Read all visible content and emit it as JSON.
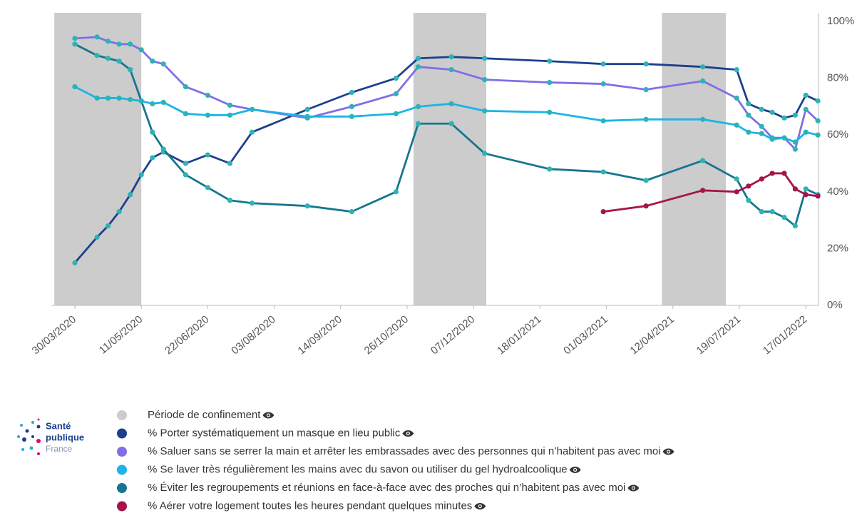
{
  "chart_data": {
    "type": "line",
    "x": [
      "30/03/2020",
      "13/04/2020",
      "20/04/2020",
      "27/04/2020",
      "04/05/2020",
      "11/05/2020",
      "18/05/2020",
      "25/05/2020",
      "08/06/2020",
      "22/06/2020",
      "06/07/2020",
      "20/07/2020",
      "24/08/2020",
      "21/09/2020",
      "19/10/2020",
      "02/11/2020",
      "23/11/2020",
      "14/12/2020",
      "24/01/2021",
      "27/02/2021",
      "26/03/2021",
      "26/05/2021",
      "15/07/2021",
      "13/08/2021",
      "18/09/2021",
      "17/10/2021",
      "19/11/2021",
      "19/12/2021",
      "17/01/2022",
      "19/02/2022"
    ],
    "xlim": [
      "15/03/2020",
      "19/02/2022"
    ],
    "xticks": [
      "30/03/2020",
      "11/05/2020",
      "22/06/2020",
      "03/08/2020",
      "14/09/2020",
      "26/10/2020",
      "07/12/2020",
      "18/01/2021",
      "01/03/2021",
      "12/04/2021",
      "19/07/2021",
      "17/01/2022"
    ],
    "ylim": [
      0,
      100
    ],
    "yticks": [
      {
        "value": 0,
        "label": "0%"
      },
      {
        "value": 20,
        "label": "20%"
      },
      {
        "value": 40,
        "label": "40%"
      },
      {
        "value": 60,
        "label": "60%"
      },
      {
        "value": 80,
        "label": "80%"
      },
      {
        "value": 100,
        "label": "100%"
      }
    ],
    "grid": false,
    "bands": {
      "name": "Période de confinement",
      "color": "#cccccc",
      "periods": [
        [
          "17/03/2020",
          "11/05/2020"
        ],
        [
          "30/10/2020",
          "15/12/2020"
        ],
        [
          "05/04/2021",
          "29/06/2021"
        ]
      ]
    },
    "series": [
      {
        "name": "% Porter systématiquement un masque en lieu public",
        "color": "#1d3f8e",
        "marker_color": "#2bb3b5",
        "values": [
          15,
          24,
          28,
          33,
          39,
          46,
          52,
          54,
          50,
          53,
          50,
          61,
          69,
          75,
          80,
          87,
          87.5,
          87,
          86,
          85,
          85,
          84,
          83,
          71,
          69,
          68,
          66,
          67,
          74,
          72
        ]
      },
      {
        "name": "% Saluer sans se serrer la main et arrêter les embrassades avec des personnes qui n’habitent pas avec moi",
        "color": "#7f6fe6",
        "marker_color": "#2bb3b5",
        "values": [
          94,
          94.5,
          93,
          92,
          92,
          90,
          86,
          85,
          77,
          74,
          70.5,
          69,
          66,
          70,
          74.5,
          84,
          83,
          79.5,
          78.5,
          78,
          76,
          79,
          73,
          67,
          63,
          59,
          59,
          55,
          69,
          65
        ]
      },
      {
        "name": "% Se laver très régulièrement les mains avec du savon ou utiliser du gel hydroalcoolique",
        "color": "#1ab4e8",
        "marker_color": "#2bb3b5",
        "values": [
          77,
          73,
          73,
          73,
          72.5,
          72,
          71,
          71.5,
          67.5,
          67,
          67,
          69,
          66.5,
          66.5,
          67.5,
          70,
          71,
          68.5,
          68,
          65,
          65.5,
          65.5,
          63.5,
          61,
          60.5,
          58.5,
          59,
          57.5,
          61,
          60
        ]
      },
      {
        "name": "% Éviter les regroupements et réunions en face-à-face avec des proches qui n’habitent pas avec moi",
        "color": "#17758f",
        "marker_color": "#2bb3b5",
        "values": [
          92,
          88,
          87,
          86,
          83,
          72,
          61,
          55,
          46,
          41.5,
          37,
          36,
          35,
          33,
          40,
          64,
          64,
          53.5,
          48,
          47,
          44,
          51,
          44.5,
          37,
          33,
          33,
          31,
          28,
          41,
          39
        ]
      },
      {
        "name": "% Aérer votre logement toutes les heures pendant quelques minutes",
        "color": "#a5144a",
        "marker_color": "#a5144a",
        "values": [
          null,
          null,
          null,
          null,
          null,
          null,
          null,
          null,
          null,
          null,
          null,
          null,
          null,
          null,
          null,
          null,
          null,
          null,
          null,
          33,
          35,
          40.5,
          40,
          42,
          44.5,
          46.5,
          46.5,
          41,
          39,
          38.5
        ]
      }
    ]
  },
  "logo": [
    "Santé",
    "publique",
    "France"
  ]
}
